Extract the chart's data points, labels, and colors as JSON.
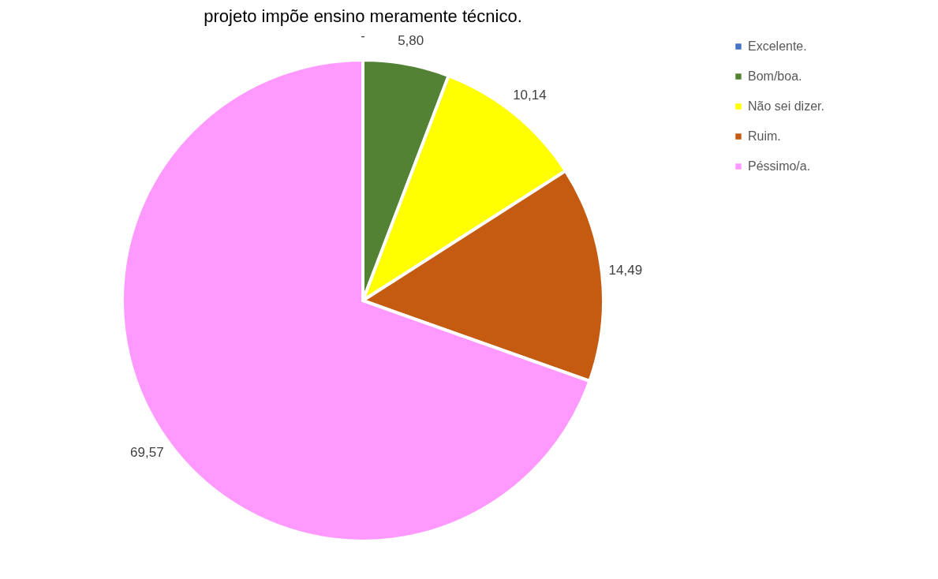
{
  "chart_data": {
    "type": "pie",
    "title": "projeto impõe ensino meramente técnico.",
    "categories": [
      "Excelente.",
      "Bom/boa.",
      "Não sei dizer.",
      "Ruim.",
      "Péssimo/a."
    ],
    "values": [
      0,
      5.8,
      10.14,
      14.49,
      69.57
    ],
    "colors": [
      "#4472c4",
      "#548235",
      "#ffff00",
      "#c55a11",
      "#ff99ff"
    ],
    "value_labels": [
      "-",
      "5,80",
      "10,14",
      "14,49",
      "69,57"
    ],
    "legend": "right"
  }
}
